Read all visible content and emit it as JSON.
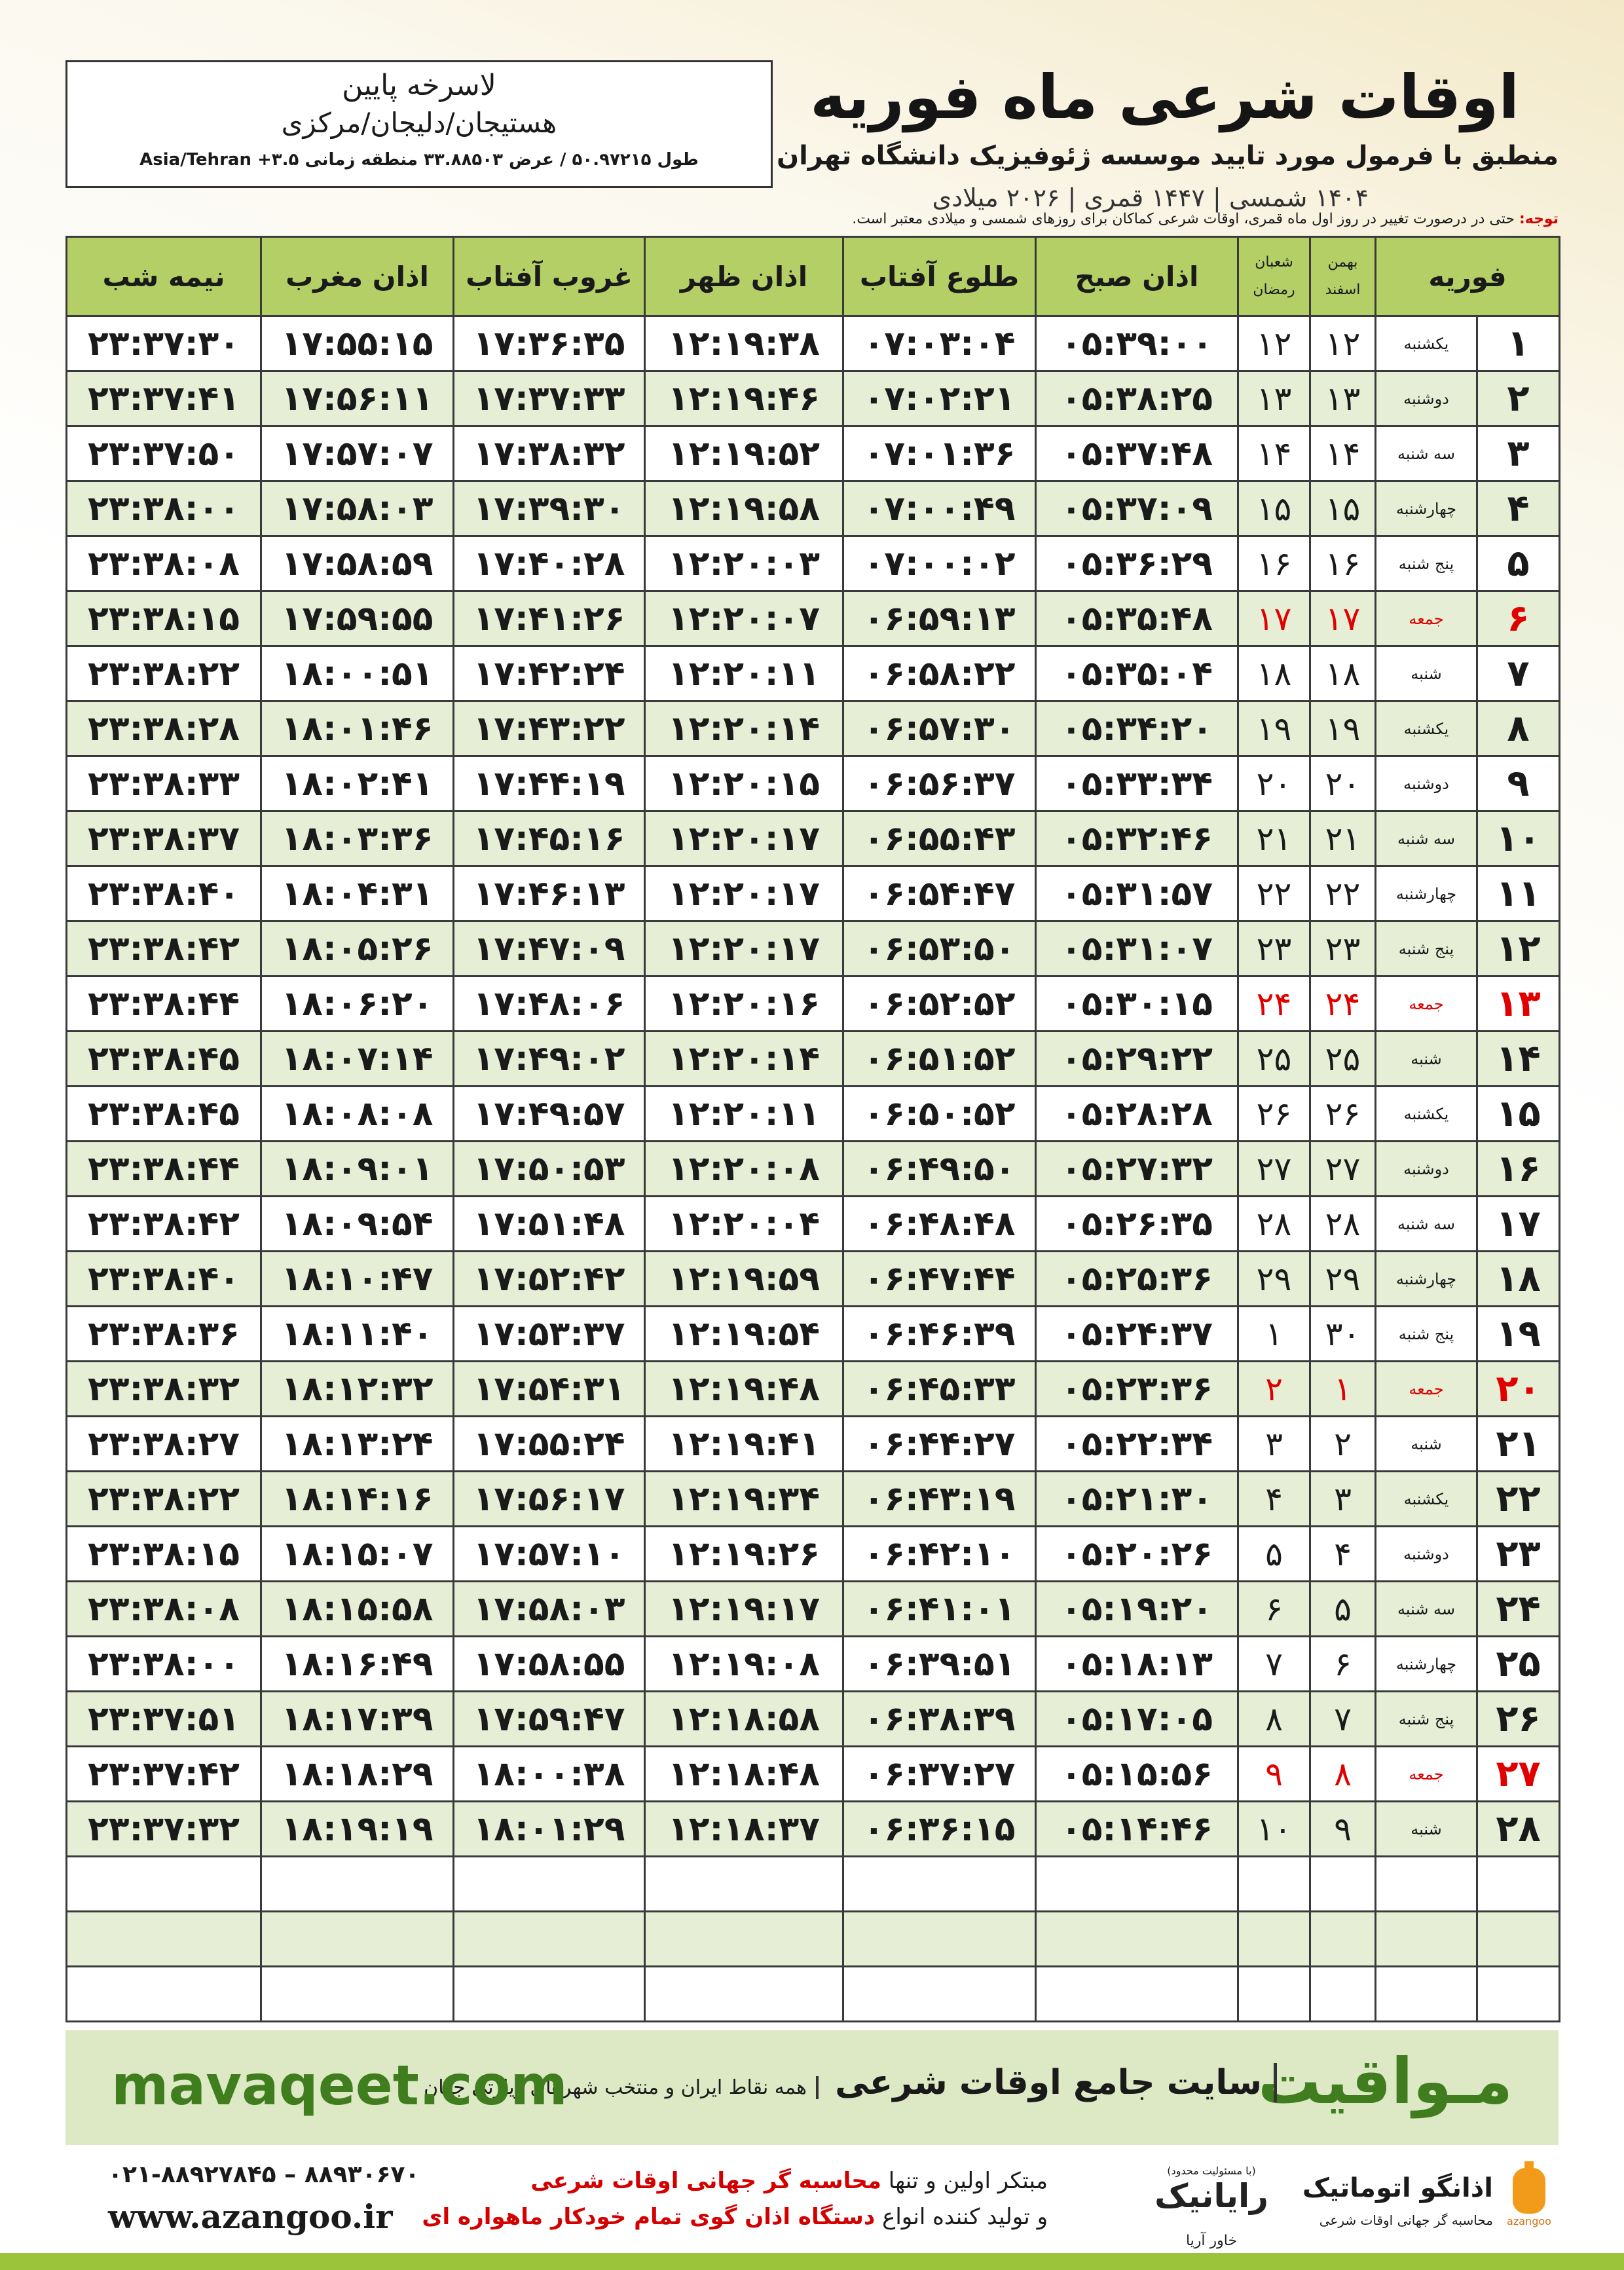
{
  "header": {
    "title": "اوقات شرعی ماه فوریه",
    "subtitle": "منطبق با فرمول مورد تایید موسسه ژئوفیزیک دانشگاه تهران",
    "dates": "۱۴۰۴ شمسی | ۱۴۴۷ قمری | ۲۰۲۶ میلادی"
  },
  "location": {
    "name": "لاسرخه پایین",
    "region": "هستیجان/دلیجان/مرکزی",
    "coordinates": "طول ۵۰.۹۷۲۱۵ / عرض ۳۳.۸۸۵۰۳ منطقه زمانی ۳.۵+ Asia/Tehran"
  },
  "note": {
    "label": "توجه:",
    "text": "حتی در درصورت تغییر در روز اول ماه قمری، اوقات شرعی کماکان برای روزهای شمسی و میلادی معتبر است."
  },
  "table": {
    "columns": {
      "month": "فوریه",
      "shamsi": [
        "بهمن",
        "اسفند"
      ],
      "qamari": [
        "شعبان",
        "رمضان"
      ],
      "times": [
        "اذان صبح",
        "طلوع آفتاب",
        "اذان ظهر",
        "غروب آفتاب",
        "اذان مغرب",
        "نیمه شب"
      ]
    },
    "rows": [
      {
        "day": "۱",
        "weekday": "یکشنبه",
        "shamsi": "۱۲",
        "qamari": "۱۲",
        "times": [
          "۰۵:۳۹:۰۰",
          "۰۷:۰۳:۰۴",
          "۱۲:۱۹:۳۸",
          "۱۷:۳۶:۳۵",
          "۱۷:۵۵:۱۵",
          "۲۳:۳۷:۳۰"
        ]
      },
      {
        "day": "۲",
        "weekday": "دوشنبه",
        "shamsi": "۱۳",
        "qamari": "۱۳",
        "times": [
          "۰۵:۳۸:۲۵",
          "۰۷:۰۲:۲۱",
          "۱۲:۱۹:۴۶",
          "۱۷:۳۷:۳۳",
          "۱۷:۵۶:۱۱",
          "۲۳:۳۷:۴۱"
        ]
      },
      {
        "day": "۳",
        "weekday": "سه شنبه",
        "shamsi": "۱۴",
        "qamari": "۱۴",
        "times": [
          "۰۵:۳۷:۴۸",
          "۰۷:۰۱:۳۶",
          "۱۲:۱۹:۵۲",
          "۱۷:۳۸:۳۲",
          "۱۷:۵۷:۰۷",
          "۲۳:۳۷:۵۰"
        ]
      },
      {
        "day": "۴",
        "weekday": "چهارشنبه",
        "shamsi": "۱۵",
        "qamari": "۱۵",
        "times": [
          "۰۵:۳۷:۰۹",
          "۰۷:۰۰:۴۹",
          "۱۲:۱۹:۵۸",
          "۱۷:۳۹:۳۰",
          "۱۷:۵۸:۰۳",
          "۲۳:۳۸:۰۰"
        ]
      },
      {
        "day": "۵",
        "weekday": "پنج شنبه",
        "shamsi": "۱۶",
        "qamari": "۱۶",
        "times": [
          "۰۵:۳۶:۲۹",
          "۰۷:۰۰:۰۲",
          "۱۲:۲۰:۰۳",
          "۱۷:۴۰:۲۸",
          "۱۷:۵۸:۵۹",
          "۲۳:۳۸:۰۸"
        ]
      },
      {
        "day": "۶",
        "weekday": "جمعه",
        "shamsi": "۱۷",
        "qamari": "۱۷",
        "holiday": true,
        "times": [
          "۰۵:۳۵:۴۸",
          "۰۶:۵۹:۱۳",
          "۱۲:۲۰:۰۷",
          "۱۷:۴۱:۲۶",
          "۱۷:۵۹:۵۵",
          "۲۳:۳۸:۱۵"
        ]
      },
      {
        "day": "۷",
        "weekday": "شنبه",
        "shamsi": "۱۸",
        "qamari": "۱۸",
        "times": [
          "۰۵:۳۵:۰۴",
          "۰۶:۵۸:۲۲",
          "۱۲:۲۰:۱۱",
          "۱۷:۴۲:۲۴",
          "۱۸:۰۰:۵۱",
          "۲۳:۳۸:۲۲"
        ]
      },
      {
        "day": "۸",
        "weekday": "یکشنبه",
        "shamsi": "۱۹",
        "qamari": "۱۹",
        "times": [
          "۰۵:۳۴:۲۰",
          "۰۶:۵۷:۳۰",
          "۱۲:۲۰:۱۴",
          "۱۷:۴۳:۲۲",
          "۱۸:۰۱:۴۶",
          "۲۳:۳۸:۲۸"
        ]
      },
      {
        "day": "۹",
        "weekday": "دوشنبه",
        "shamsi": "۲۰",
        "qamari": "۲۰",
        "times": [
          "۰۵:۳۳:۳۴",
          "۰۶:۵۶:۳۷",
          "۱۲:۲۰:۱۵",
          "۱۷:۴۴:۱۹",
          "۱۸:۰۲:۴۱",
          "۲۳:۳۸:۳۳"
        ]
      },
      {
        "day": "۱۰",
        "weekday": "سه شنبه",
        "shamsi": "۲۱",
        "qamari": "۲۱",
        "times": [
          "۰۵:۳۲:۴۶",
          "۰۶:۵۵:۴۳",
          "۱۲:۲۰:۱۷",
          "۱۷:۴۵:۱۶",
          "۱۸:۰۳:۳۶",
          "۲۳:۳۸:۳۷"
        ]
      },
      {
        "day": "۱۱",
        "weekday": "چهارشنبه",
        "shamsi": "۲۲",
        "qamari": "۲۲",
        "times": [
          "۰۵:۳۱:۵۷",
          "۰۶:۵۴:۴۷",
          "۱۲:۲۰:۱۷",
          "۱۷:۴۶:۱۳",
          "۱۸:۰۴:۳۱",
          "۲۳:۳۸:۴۰"
        ]
      },
      {
        "day": "۱۲",
        "weekday": "پنج شنبه",
        "shamsi": "۲۳",
        "qamari": "۲۳",
        "times": [
          "۰۵:۳۱:۰۷",
          "۰۶:۵۳:۵۰",
          "۱۲:۲۰:۱۷",
          "۱۷:۴۷:۰۹",
          "۱۸:۰۵:۲۶",
          "۲۳:۳۸:۴۲"
        ]
      },
      {
        "day": "۱۳",
        "weekday": "جمعه",
        "shamsi": "۲۴",
        "qamari": "۲۴",
        "holiday": true,
        "times": [
          "۰۵:۳۰:۱۵",
          "۰۶:۵۲:۵۲",
          "۱۲:۲۰:۱۶",
          "۱۷:۴۸:۰۶",
          "۱۸:۰۶:۲۰",
          "۲۳:۳۸:۴۴"
        ]
      },
      {
        "day": "۱۴",
        "weekday": "شنبه",
        "shamsi": "۲۵",
        "qamari": "۲۵",
        "times": [
          "۰۵:۲۹:۲۲",
          "۰۶:۵۱:۵۲",
          "۱۲:۲۰:۱۴",
          "۱۷:۴۹:۰۲",
          "۱۸:۰۷:۱۴",
          "۲۳:۳۸:۴۵"
        ]
      },
      {
        "day": "۱۵",
        "weekday": "یکشنبه",
        "shamsi": "۲۶",
        "qamari": "۲۶",
        "times": [
          "۰۵:۲۸:۲۸",
          "۰۶:۵۰:۵۲",
          "۱۲:۲۰:۱۱",
          "۱۷:۴۹:۵۷",
          "۱۸:۰۸:۰۸",
          "۲۳:۳۸:۴۵"
        ]
      },
      {
        "day": "۱۶",
        "weekday": "دوشنبه",
        "shamsi": "۲۷",
        "qamari": "۲۷",
        "times": [
          "۰۵:۲۷:۳۲",
          "۰۶:۴۹:۵۰",
          "۱۲:۲۰:۰۸",
          "۱۷:۵۰:۵۳",
          "۱۸:۰۹:۰۱",
          "۲۳:۳۸:۴۴"
        ]
      },
      {
        "day": "۱۷",
        "weekday": "سه شنبه",
        "shamsi": "۲۸",
        "qamari": "۲۸",
        "times": [
          "۰۵:۲۶:۳۵",
          "۰۶:۴۸:۴۸",
          "۱۲:۲۰:۰۴",
          "۱۷:۵۱:۴۸",
          "۱۸:۰۹:۵۴",
          "۲۳:۳۸:۴۲"
        ]
      },
      {
        "day": "۱۸",
        "weekday": "چهارشنبه",
        "shamsi": "۲۹",
        "qamari": "۲۹",
        "times": [
          "۰۵:۲۵:۳۶",
          "۰۶:۴۷:۴۴",
          "۱۲:۱۹:۵۹",
          "۱۷:۵۲:۴۲",
          "۱۸:۱۰:۴۷",
          "۲۳:۳۸:۴۰"
        ]
      },
      {
        "day": "۱۹",
        "weekday": "پنج شنبه",
        "shamsi": "۳۰",
        "qamari": "۱",
        "times": [
          "۰۵:۲۴:۳۷",
          "۰۶:۴۶:۳۹",
          "۱۲:۱۹:۵۴",
          "۱۷:۵۳:۳۷",
          "۱۸:۱۱:۴۰",
          "۲۳:۳۸:۳۶"
        ]
      },
      {
        "day": "۲۰",
        "weekday": "جمعه",
        "shamsi": "۱",
        "qamari": "۲",
        "holiday": true,
        "times": [
          "۰۵:۲۳:۳۶",
          "۰۶:۴۵:۳۳",
          "۱۲:۱۹:۴۸",
          "۱۷:۵۴:۳۱",
          "۱۸:۱۲:۳۲",
          "۲۳:۳۸:۳۲"
        ]
      },
      {
        "day": "۲۱",
        "weekday": "شنبه",
        "shamsi": "۲",
        "qamari": "۳",
        "times": [
          "۰۵:۲۲:۳۴",
          "۰۶:۴۴:۲۷",
          "۱۲:۱۹:۴۱",
          "۱۷:۵۵:۲۴",
          "۱۸:۱۳:۲۴",
          "۲۳:۳۸:۲۷"
        ]
      },
      {
        "day": "۲۲",
        "weekday": "یکشنبه",
        "shamsi": "۳",
        "qamari": "۴",
        "times": [
          "۰۵:۲۱:۳۰",
          "۰۶:۴۳:۱۹",
          "۱۲:۱۹:۳۴",
          "۱۷:۵۶:۱۷",
          "۱۸:۱۴:۱۶",
          "۲۳:۳۸:۲۲"
        ]
      },
      {
        "day": "۲۳",
        "weekday": "دوشنبه",
        "shamsi": "۴",
        "qamari": "۵",
        "times": [
          "۰۵:۲۰:۲۶",
          "۰۶:۴۲:۱۰",
          "۱۲:۱۹:۲۶",
          "۱۷:۵۷:۱۰",
          "۱۸:۱۵:۰۷",
          "۲۳:۳۸:۱۵"
        ]
      },
      {
        "day": "۲۴",
        "weekday": "سه شنبه",
        "shamsi": "۵",
        "qamari": "۶",
        "times": [
          "۰۵:۱۹:۲۰",
          "۰۶:۴۱:۰۱",
          "۱۲:۱۹:۱۷",
          "۱۷:۵۸:۰۳",
          "۱۸:۱۵:۵۸",
          "۲۳:۳۸:۰۸"
        ]
      },
      {
        "day": "۲۵",
        "weekday": "چهارشنبه",
        "shamsi": "۶",
        "qamari": "۷",
        "times": [
          "۰۵:۱۸:۱۳",
          "۰۶:۳۹:۵۱",
          "۱۲:۱۹:۰۸",
          "۱۷:۵۸:۵۵",
          "۱۸:۱۶:۴۹",
          "۲۳:۳۸:۰۰"
        ]
      },
      {
        "day": "۲۶",
        "weekday": "پنج شنبه",
        "shamsi": "۷",
        "qamari": "۸",
        "times": [
          "۰۵:۱۷:۰۵",
          "۰۶:۳۸:۳۹",
          "۱۲:۱۸:۵۸",
          "۱۷:۵۹:۴۷",
          "۱۸:۱۷:۳۹",
          "۲۳:۳۷:۵۱"
        ]
      },
      {
        "day": "۲۷",
        "weekday": "جمعه",
        "shamsi": "۸",
        "qamari": "۹",
        "holiday": true,
        "times": [
          "۰۵:۱۵:۵۶",
          "۰۶:۳۷:۲۷",
          "۱۲:۱۸:۴۸",
          "۱۸:۰۰:۳۸",
          "۱۸:۱۸:۲۹",
          "۲۳:۳۷:۴۲"
        ]
      },
      {
        "day": "۲۸",
        "weekday": "شنبه",
        "shamsi": "۹",
        "qamari": "۱۰",
        "times": [
          "۰۵:۱۴:۴۶",
          "۰۶:۳۶:۱۵",
          "۱۲:۱۸:۳۷",
          "۱۸:۰۱:۲۹",
          "۱۸:۱۹:۱۹",
          "۲۳:۳۷:۳۲"
        ]
      }
    ]
  },
  "footer": {
    "brand": "مـواقیت",
    "slogan": "سایت جامع اوقات شرعی",
    "tagline": "همه نقاط ایران و منتخب شهرهای زیارتی جهان",
    "website": "mavaqeet.com"
  },
  "contact": {
    "phone": "۰۲۱-۸۸۹۲۷۸۴۵ – ۸۸۹۳۰۶۷۰",
    "website": "www.azangoo.ir",
    "line1_prefix": "مبتکر اولین و تنها",
    "line1_highlight": "محاسبه گر جهانی اوقات شرعی",
    "line2_prefix": "و تولید کننده انواع",
    "line2_highlight": "دستگاه اذان گوی تمام خودکار ماهواره ای"
  },
  "logos": {
    "rayanik_note": "(با مسئولیت محدود)",
    "rayanik": "رایانیک",
    "khavar": "خاور آریا",
    "azangoo": "اذانگو اتوماتیک",
    "azangoo_sub": "محاسبه گر جهانی اوقات شرعی",
    "azangoo_latin": "azangoo"
  }
}
